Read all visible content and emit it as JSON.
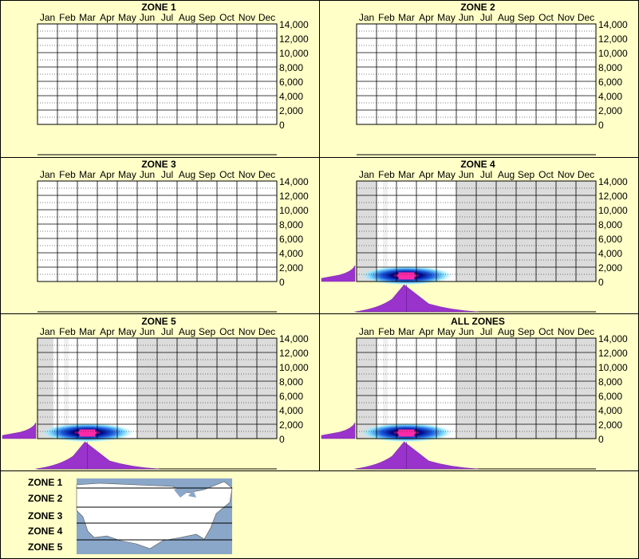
{
  "months": [
    "Jan",
    "Feb",
    "Mar",
    "Apr",
    "May",
    "Jun",
    "Jul",
    "Aug",
    "Sep",
    "Oct",
    "Nov",
    "Dec"
  ],
  "y_ticks": [
    "14,000",
    "12,000",
    "10,000",
    "8,000",
    "6,000",
    "4,000",
    "2,000",
    "0"
  ],
  "colors": {
    "background": "#ffffc8",
    "shade": "#dcdcdc",
    "profile": "#9933cc",
    "hot": "#ff2aa8",
    "grid": "#000000"
  },
  "chart_data": [
    {
      "type": "heatmap",
      "title": "ZONE 1",
      "ylim": [
        0,
        14000
      ],
      "active_months": [],
      "peak": null
    },
    {
      "type": "heatmap",
      "title": "ZONE 2",
      "ylim": [
        0,
        14000
      ],
      "active_months": [],
      "peak": null
    },
    {
      "type": "heatmap",
      "title": "ZONE 3",
      "ylim": [
        0,
        14000
      ],
      "active_months": [],
      "peak": null
    },
    {
      "type": "heatmap",
      "title": "ZONE 4",
      "ylim": [
        0,
        14000
      ],
      "active_months": [
        "Feb",
        "Mar",
        "Apr",
        "May"
      ],
      "peak": {
        "month": "Mar",
        "value": 500
      }
    },
    {
      "type": "heatmap",
      "title": "ZONE 5",
      "ylim": [
        0,
        14000
      ],
      "active_months": [
        "Feb",
        "Mar",
        "Apr",
        "May"
      ],
      "peak": {
        "month": "Mar",
        "value": 500
      }
    },
    {
      "type": "heatmap",
      "title": "ALL ZONES",
      "ylim": [
        0,
        14000
      ],
      "active_months": [
        "Feb",
        "Mar",
        "Apr",
        "May"
      ],
      "peak": {
        "month": "Mar",
        "value": 500
      }
    }
  ],
  "legend": {
    "zones": [
      "ZONE 1",
      "ZONE 2",
      "ZONE 3",
      "ZONE 4",
      "ZONE 5"
    ]
  }
}
